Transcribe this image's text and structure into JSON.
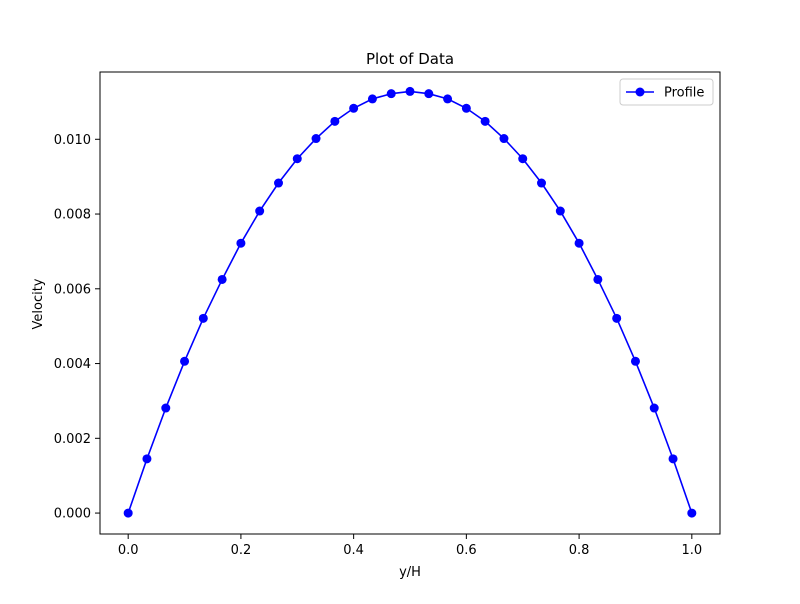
{
  "chart_data": {
    "type": "line",
    "title": "Plot of Data",
    "xlabel": "y/H",
    "ylabel": "Velocity",
    "xlim": [
      -0.05,
      1.05
    ],
    "ylim": [
      -0.00056,
      0.0118
    ],
    "xticks": [
      0.0,
      0.2,
      0.4,
      0.6,
      0.8,
      1.0
    ],
    "xtick_labels": [
      "0.0",
      "0.2",
      "0.4",
      "0.6",
      "0.8",
      "1.0"
    ],
    "yticks": [
      0.0,
      0.002,
      0.004,
      0.006,
      0.008,
      0.01
    ],
    "ytick_labels": [
      "0.000",
      "0.002",
      "0.004",
      "0.006",
      "0.008",
      "0.010"
    ],
    "grid": false,
    "legend_position": "top-right",
    "series": [
      {
        "name": "Profile",
        "color": "#0000ff",
        "marker": "circle",
        "x": [
          0.0,
          0.0333,
          0.0667,
          0.1,
          0.1333,
          0.1667,
          0.2,
          0.2333,
          0.2667,
          0.3,
          0.3333,
          0.3667,
          0.4,
          0.4333,
          0.4667,
          0.5,
          0.5333,
          0.5667,
          0.6,
          0.6333,
          0.6667,
          0.7,
          0.7333,
          0.7667,
          0.8,
          0.8333,
          0.8667,
          0.9,
          0.9333,
          0.9667,
          1.0
        ],
        "y": [
          0.0,
          0.00145,
          0.00281,
          0.00406,
          0.00521,
          0.00625,
          0.00722,
          0.00808,
          0.00883,
          0.00948,
          0.01002,
          0.01048,
          0.01083,
          0.01108,
          0.01122,
          0.01128,
          0.01122,
          0.01108,
          0.01083,
          0.01048,
          0.01002,
          0.00948,
          0.00883,
          0.00808,
          0.00722,
          0.00625,
          0.00521,
          0.00406,
          0.00281,
          0.00145,
          0.0
        ]
      }
    ]
  }
}
